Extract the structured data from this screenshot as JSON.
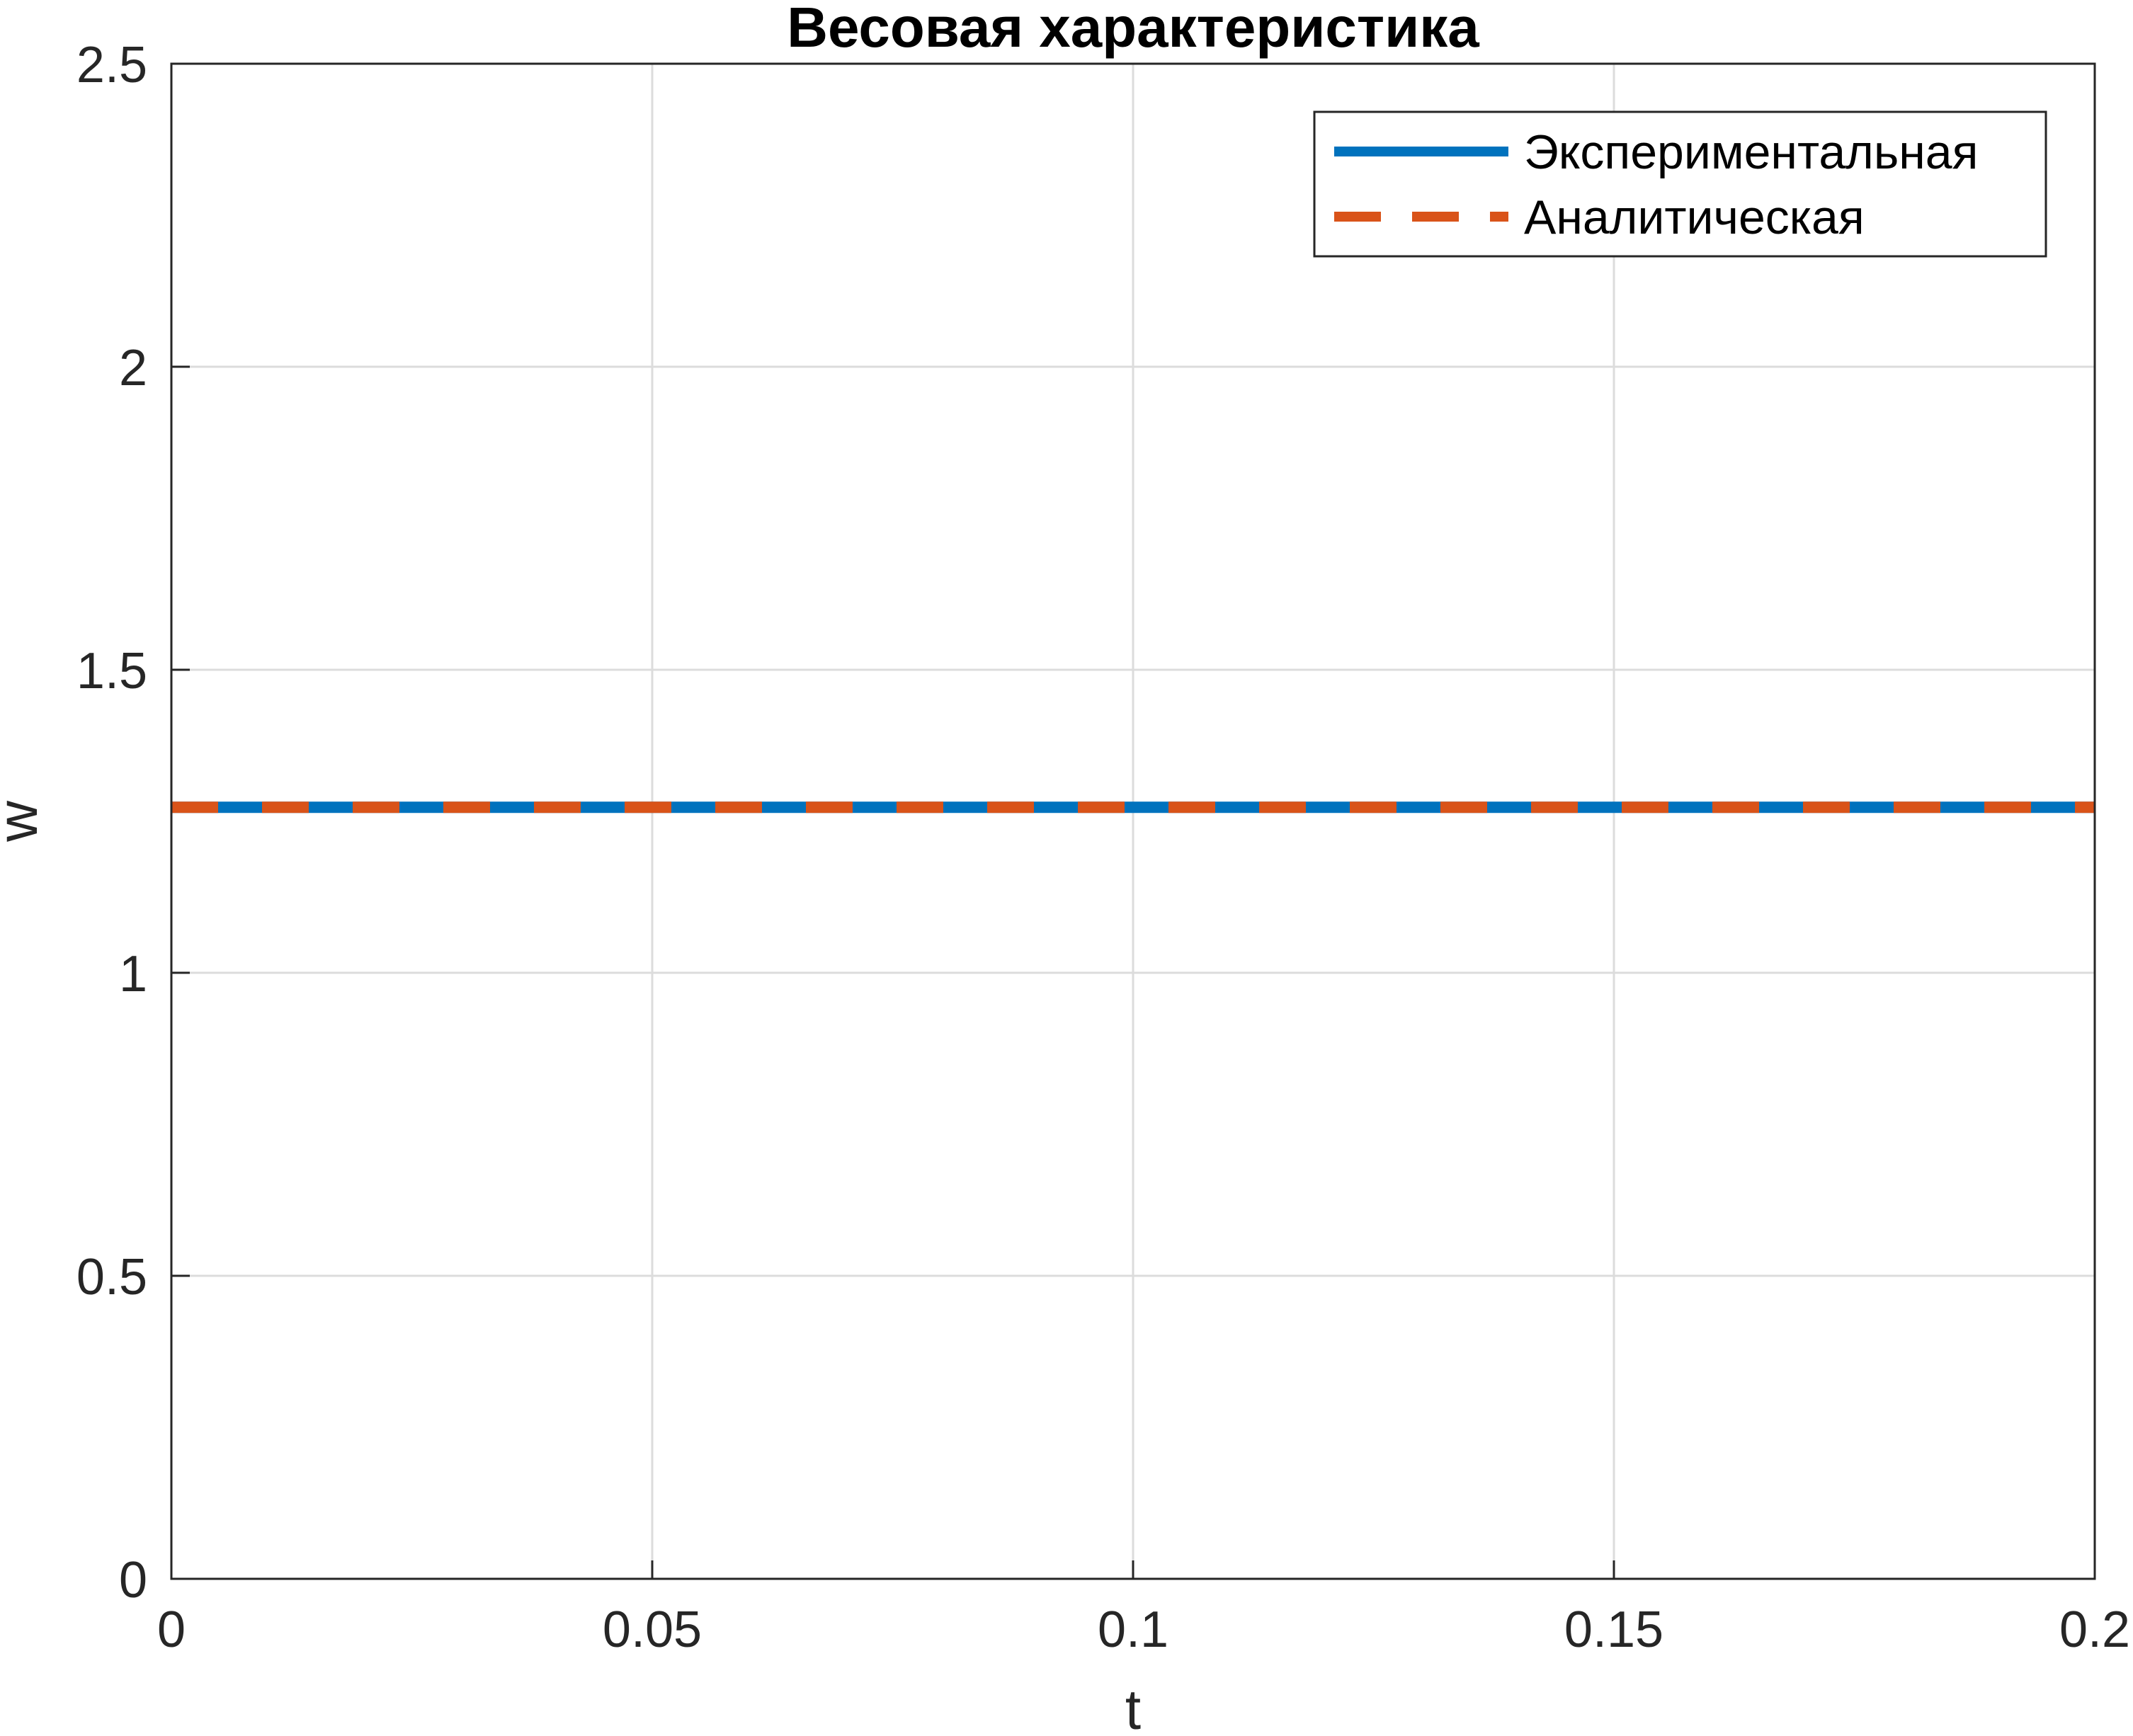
{
  "chart_data": {
    "type": "line",
    "title": "Весовая характеристика",
    "xlabel": "t",
    "ylabel": "w",
    "xlim": [
      0,
      0.2
    ],
    "ylim": [
      0,
      2.5
    ],
    "xticks": [
      0,
      0.05,
      0.1,
      0.15,
      0.2
    ],
    "xtick_labels": [
      "0",
      "0.05",
      "0.1",
      "0.15",
      "0.2"
    ],
    "yticks": [
      0,
      0.5,
      1,
      1.5,
      2,
      2.5
    ],
    "ytick_labels": [
      "0",
      "0.5",
      "1",
      "1.5",
      "2",
      "2.5"
    ],
    "grid": true,
    "legend_position": "top-right",
    "series": [
      {
        "name": "Экспериментальная",
        "style": "solid",
        "color": "#0072BD",
        "x": [
          0,
          0.2
        ],
        "y": [
          1.273,
          1.273
        ]
      },
      {
        "name": "Аналитическая",
        "style": "dashed",
        "color": "#D95319",
        "x": [
          0,
          0.2
        ],
        "y": [
          1.273,
          1.273
        ]
      }
    ]
  },
  "colors": {
    "axis": "#262626",
    "grid": "#dcdcdc",
    "background": "#ffffff"
  }
}
